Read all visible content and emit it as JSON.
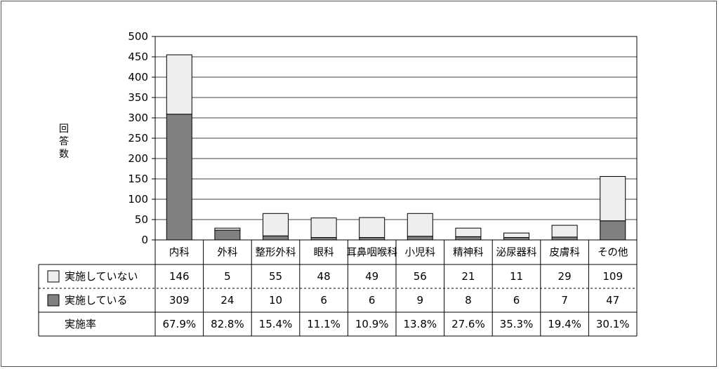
{
  "chart_data": {
    "type": "bar",
    "stacked": true,
    "ylabel": "回答数",
    "ylim": [
      0,
      500
    ],
    "yticks": [
      "0",
      "50",
      "100",
      "150",
      "200",
      "250",
      "300",
      "350",
      "400",
      "450",
      "500"
    ],
    "grid": true,
    "categories": [
      "内科",
      "外科",
      "整形外科",
      "眼科",
      "耳鼻咽喉科",
      "小児科",
      "精神科",
      "泌尿器科",
      "皮膚科",
      "その他"
    ],
    "series": [
      {
        "name": "実施している",
        "color": "#808080",
        "values": [
          309,
          24,
          10,
          6,
          6,
          9,
          8,
          6,
          7,
          47
        ],
        "labels": [
          "309",
          "24",
          "10",
          "6",
          "6",
          "9",
          "8",
          "6",
          "7",
          "47"
        ]
      },
      {
        "name": "実施していない",
        "color": "#eeeeee",
        "values": [
          146,
          5,
          55,
          48,
          49,
          56,
          21,
          11,
          29,
          109
        ],
        "labels": [
          "146",
          "5",
          "55",
          "48",
          "49",
          "56",
          "21",
          "11",
          "29",
          "109"
        ]
      }
    ],
    "rate_row": {
      "name": "実施率",
      "values": [
        "67.9%",
        "82.8%",
        "15.4%",
        "11.1%",
        "10.9%",
        "13.8%",
        "27.6%",
        "35.3%",
        "19.4%",
        "30.1%"
      ]
    }
  }
}
